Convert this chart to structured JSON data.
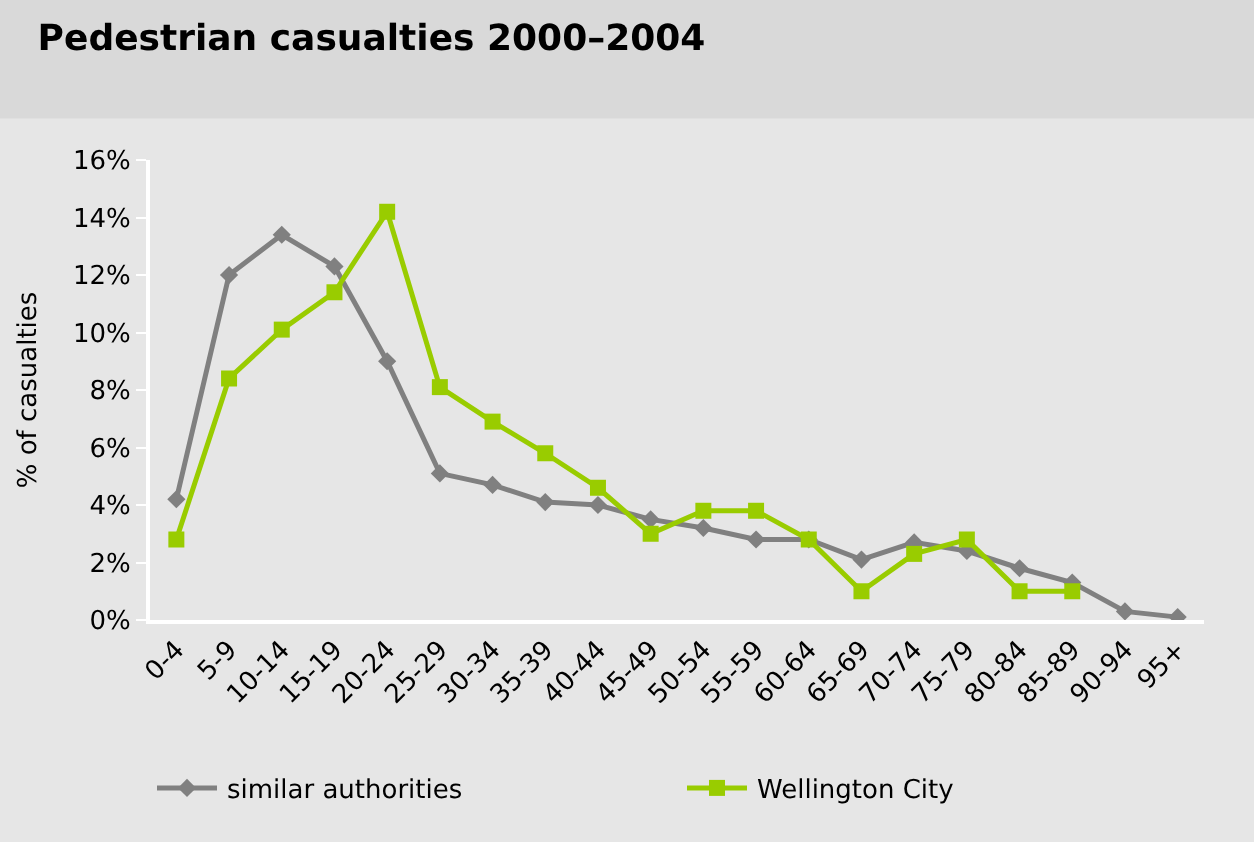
{
  "chart_data": {
    "type": "line",
    "title": "Pedestrian casualties 2000–2004",
    "ylabel": "% of casualties",
    "categories": [
      "0-4",
      "5-9",
      "10-14",
      "15-19",
      "20-24",
      "25-29",
      "30-34",
      "35-39",
      "40-44",
      "45-49",
      "50-54",
      "55-59",
      "60-64",
      "65-69",
      "70-74",
      "75-79",
      "80-84",
      "85-89",
      "90-94",
      "95+"
    ],
    "series": [
      {
        "name": "similar authorities",
        "color": "#808080",
        "marker": "diamond",
        "values": [
          4.2,
          12.0,
          13.4,
          12.3,
          9.0,
          5.1,
          4.7,
          4.1,
          4.0,
          3.5,
          3.2,
          2.8,
          2.8,
          2.1,
          2.7,
          2.4,
          1.8,
          1.3,
          0.3,
          0.1
        ]
      },
      {
        "name": "Wellington City",
        "color": "#99cc00",
        "marker": "square",
        "values": [
          2.8,
          8.4,
          10.1,
          11.4,
          14.2,
          8.1,
          6.9,
          5.8,
          4.6,
          3.0,
          3.8,
          3.8,
          2.8,
          1.0,
          2.3,
          2.8,
          1.0,
          1.0,
          null,
          null
        ]
      }
    ],
    "ylim": [
      0,
      16
    ],
    "yticks": [
      {
        "value": 0,
        "label": "0%"
      },
      {
        "value": 2,
        "label": "2%"
      },
      {
        "value": 4,
        "label": "4%"
      },
      {
        "value": 6,
        "label": "6%"
      },
      {
        "value": 8,
        "label": "8%"
      },
      {
        "value": 10,
        "label": "10%"
      },
      {
        "value": 12,
        "label": "12%"
      },
      {
        "value": 14,
        "label": "14%"
      },
      {
        "value": 16,
        "label": "16%"
      }
    ],
    "grid": false,
    "legend": "bottom",
    "line_style": "solid"
  }
}
